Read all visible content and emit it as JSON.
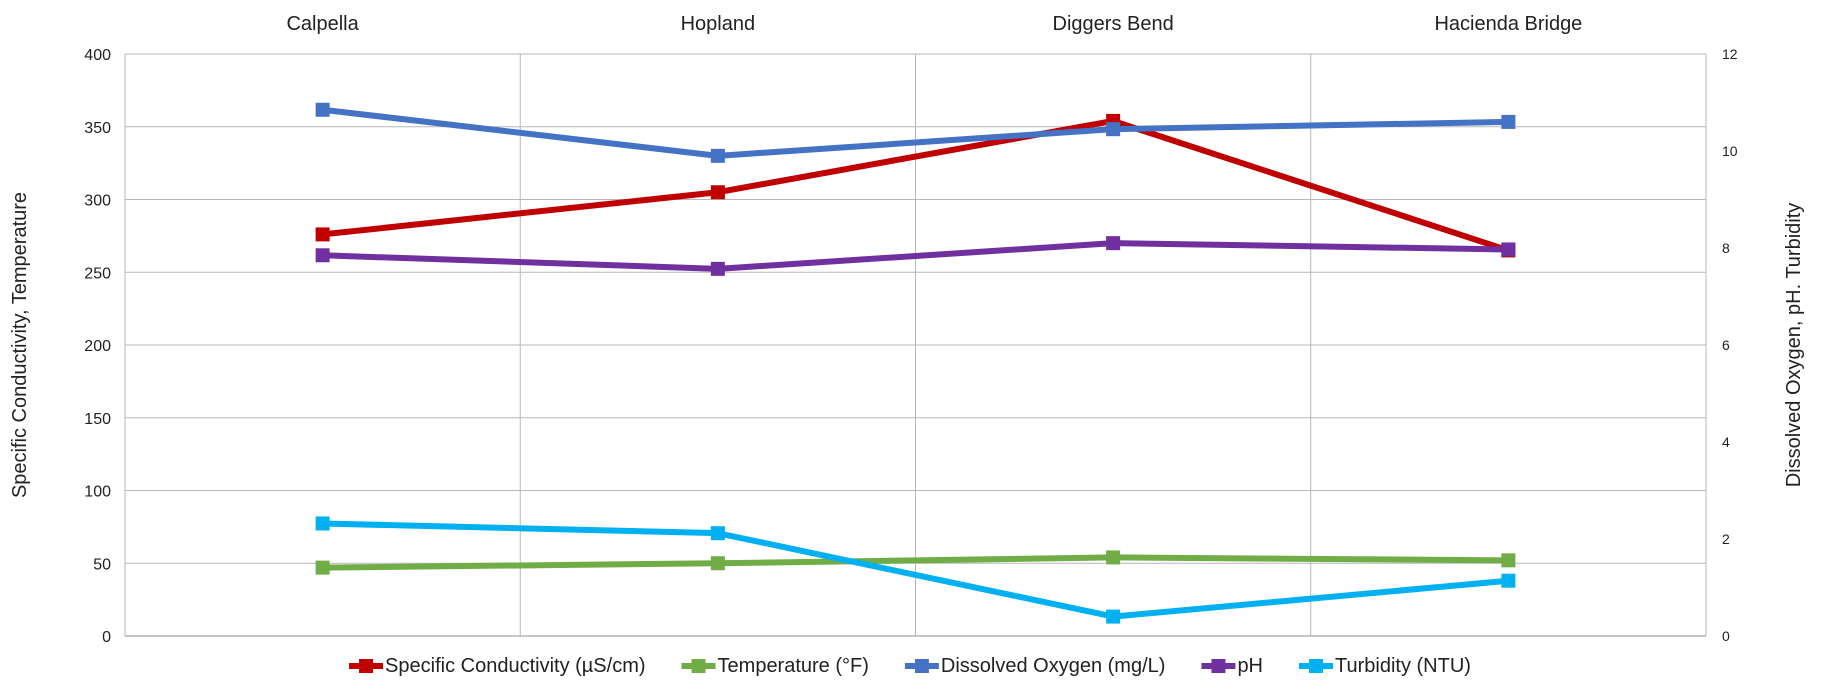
{
  "chart_data": {
    "type": "line",
    "categories": [
      "Calpella",
      "Hopland",
      "Diggers Bend",
      "Hacienda Bridge"
    ],
    "ylabel_left": "Specific Conductivity, Temperature",
    "ylabel_right": "Dissolved Oxygen, pH. Turbidity",
    "ylim_left": [
      0,
      400
    ],
    "yticks_left": [
      0,
      50,
      100,
      150,
      200,
      250,
      300,
      350,
      400
    ],
    "ylim_right": [
      0,
      12
    ],
    "yticks_right": [
      0,
      2,
      4,
      6,
      8,
      10,
      12
    ],
    "grid": true,
    "legend_position": "bottom",
    "series": [
      {
        "name": "Specific Conductivity (µS/cm)",
        "axis": "left",
        "color": "#c00000",
        "values": [
          276,
          305,
          354,
          265
        ]
      },
      {
        "name": "Temperature  (°F)",
        "axis": "left",
        "color": "#70ad47",
        "values": [
          47,
          50,
          54,
          52
        ]
      },
      {
        "name": "Dissolved Oxygen (mg/L)",
        "axis": "right",
        "color": "#4472c4",
        "values": [
          10.85,
          9.9,
          10.45,
          10.6
        ]
      },
      {
        "name": "pH",
        "axis": "right",
        "color": "#7030a0",
        "values": [
          7.85,
          7.57,
          8.1,
          7.97
        ]
      },
      {
        "name": "Turbidity (NTU)",
        "axis": "right",
        "color": "#00b0f0",
        "values": [
          2.32,
          2.12,
          0.4,
          1.14
        ]
      }
    ]
  }
}
